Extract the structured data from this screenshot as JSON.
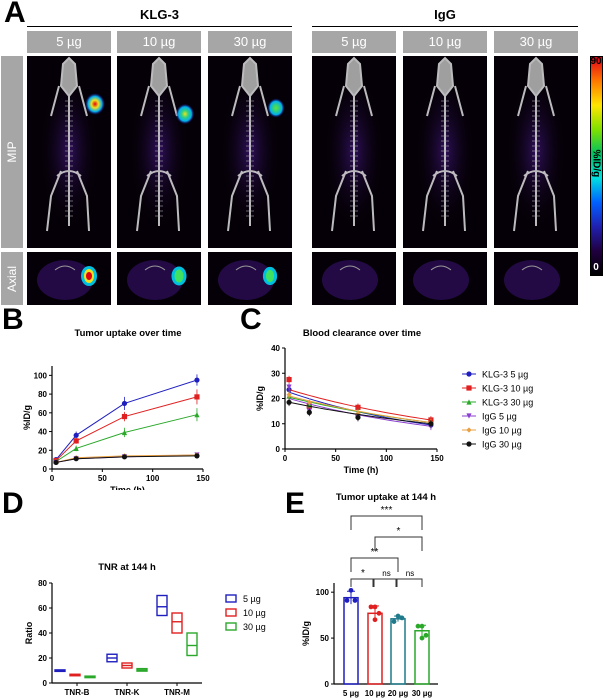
{
  "panelA": {
    "letter": "A",
    "groups": [
      {
        "title": "KLG-3",
        "doses": [
          "5 µg",
          "10 µg",
          "30 µg"
        ],
        "tumor_intensity": [
          1.0,
          0.75,
          0.55
        ]
      },
      {
        "title": "IgG",
        "doses": [
          "5 µg",
          "10 µg",
          "30 µg"
        ],
        "tumor_intensity": [
          0,
          0,
          0
        ]
      }
    ],
    "rows": [
      "MIP",
      "Axial"
    ],
    "colorbar": {
      "max": "90",
      "min": "0",
      "label": "%ID/g"
    }
  },
  "chart_data": [
    {
      "panel": "B",
      "type": "line",
      "title": "Tumor uptake over time",
      "xlabel": "Time (h)",
      "ylabel": "%ID/g",
      "xlim": [
        0,
        150
      ],
      "ylim": [
        0,
        110
      ],
      "xticks": [
        "0",
        "50",
        "100",
        "150"
      ],
      "yticks": [
        "0",
        "20",
        "40",
        "60",
        "80",
        "100"
      ],
      "x": [
        4,
        24,
        72,
        144
      ],
      "series": [
        {
          "name": "KLG-3 5 µg",
          "color": "#1f1fbf",
          "marker": "circle",
          "values": [
            10,
            36,
            70,
            95
          ],
          "err": [
            2,
            4,
            7,
            6
          ]
        },
        {
          "name": "KLG-3 10 µg",
          "color": "#e02020",
          "marker": "square",
          "values": [
            9,
            30,
            56,
            77
          ],
          "err": [
            2,
            3,
            5,
            8
          ]
        },
        {
          "name": "KLG-3 30 µg",
          "color": "#2aa82a",
          "marker": "triangle",
          "values": [
            8,
            22,
            39,
            58
          ],
          "err": [
            2,
            3,
            5,
            7
          ]
        },
        {
          "name": "IgG 5 µg",
          "color": "#8a3fcf",
          "marker": "triangle-down",
          "values": [
            7,
            11,
            13,
            15
          ],
          "err": [
            1,
            2,
            2,
            2
          ]
        },
        {
          "name": "IgG 10 µg",
          "color": "#e8a040",
          "marker": "diamond",
          "values": [
            7,
            12,
            14,
            15
          ],
          "err": [
            1,
            2,
            2,
            2
          ]
        },
        {
          "name": "IgG 30 µg",
          "color": "#111111",
          "marker": "circle",
          "values": [
            7,
            11,
            13,
            14
          ],
          "err": [
            1,
            2,
            2,
            2
          ]
        }
      ]
    },
    {
      "panel": "C",
      "type": "line",
      "title": "Blood clearance over time",
      "xlabel": "Time (h)",
      "ylabel": "%ID/g",
      "xlim": [
        0,
        150
      ],
      "ylim": [
        0,
        40
      ],
      "xticks": [
        "0",
        "50",
        "100",
        "150"
      ],
      "yticks": [
        "0",
        "10",
        "20",
        "30",
        "40"
      ],
      "x": [
        4,
        24,
        72,
        144
      ],
      "legend": "right",
      "series": [
        {
          "name": "KLG-3 5 µg",
          "color": "#1f1fbf",
          "marker": "circle",
          "values": [
            23.5,
            16.5,
            13.5,
            9.5
          ],
          "fit": [
            22.5,
            9.5
          ]
        },
        {
          "name": "KLG-3 10 µg",
          "color": "#e02020",
          "marker": "square",
          "values": [
            27.5,
            17,
            16.5,
            11.5
          ],
          "fit": [
            23.5,
            11.5
          ]
        },
        {
          "name": "KLG-3 30 µg",
          "color": "#2aa82a",
          "marker": "triangle",
          "values": [
            21,
            17.5,
            14.5,
            10.5
          ],
          "fit": [
            20.5,
            10.5
          ]
        },
        {
          "name": "IgG 5 µg",
          "color": "#8a3fcf",
          "marker": "triangle-down",
          "values": [
            24.5,
            15,
            12.5,
            9
          ],
          "fit": [
            20,
            9
          ]
        },
        {
          "name": "IgG 10 µg",
          "color": "#e8a040",
          "marker": "diamond",
          "values": [
            21.5,
            18.5,
            14,
            10.5
          ],
          "fit": [
            21,
            10.5
          ]
        },
        {
          "name": "IgG 30 µg",
          "color": "#111111",
          "marker": "circle",
          "values": [
            18.5,
            14.5,
            12.5,
            10
          ],
          "fit": [
            18.5,
            10
          ]
        }
      ]
    },
    {
      "panel": "D",
      "type": "bar",
      "title": "TNR at 144 h",
      "ylabel": "Ratio",
      "ylim": [
        0,
        80
      ],
      "yticks": [
        "0",
        "20",
        "40",
        "60",
        "80"
      ],
      "categories": [
        "TNR-B",
        "TNR-K",
        "TNR-M"
      ],
      "legend": "right",
      "series": [
        {
          "name": "5 µg",
          "color": "#1f1fbf",
          "min": [
            9.5,
            17,
            54
          ],
          "mean": [
            10,
            20,
            61
          ],
          "max": [
            10.5,
            23,
            70
          ]
        },
        {
          "name": "10 µg",
          "color": "#e02020",
          "min": [
            6,
            12,
            40
          ],
          "mean": [
            6.5,
            14,
            49
          ],
          "max": [
            7,
            16,
            56
          ]
        },
        {
          "name": "30 µg",
          "color": "#2aa82a",
          "min": [
            4.5,
            9.5,
            22
          ],
          "mean": [
            5,
            10.5,
            30
          ],
          "max": [
            5.5,
            11.5,
            40
          ]
        }
      ]
    },
    {
      "panel": "E",
      "type": "bar",
      "title": "Tumor uptake at 144 h",
      "ylabel": "%ID/g",
      "ylim": [
        0,
        110
      ],
      "yticks": [
        "0",
        "50",
        "100"
      ],
      "categories": [
        "5 µg",
        "10 µg",
        "20 µg",
        "30 µg"
      ],
      "colors": [
        "#1f1fbf",
        "#e02020",
        "#1f7a8c",
        "#2aa82a"
      ],
      "values": [
        94,
        77,
        71,
        58
      ],
      "err": [
        7,
        8,
        3,
        6
      ],
      "points": [
        [
          102,
          91,
          91
        ],
        [
          84,
          84,
          77,
          70
        ],
        [
          74,
          68,
          72
        ],
        [
          63,
          63,
          53,
          50
        ]
      ],
      "significance": [
        {
          "from": 0,
          "to": 1,
          "label": "*"
        },
        {
          "from": 1,
          "to": 2,
          "label": "ns"
        },
        {
          "from": 2,
          "to": 3,
          "label": "ns"
        },
        {
          "from": 0,
          "to": 2,
          "label": "**"
        },
        {
          "from": 1,
          "to": 3,
          "label": "*"
        },
        {
          "from": 0,
          "to": 3,
          "label": "***"
        }
      ]
    }
  ],
  "letters": {
    "B": "B",
    "C": "C",
    "D": "D",
    "E": "E"
  }
}
